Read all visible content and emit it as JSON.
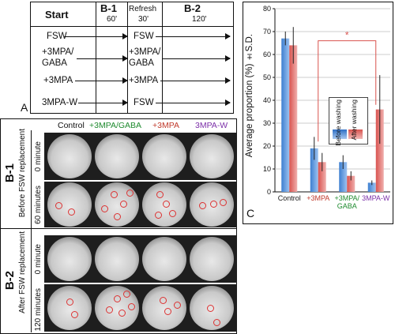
{
  "panel_a": {
    "letter": "A",
    "headers": {
      "start": "Start",
      "b1": "B-1",
      "b1_time": "60'",
      "refresh": "Refresh",
      "refresh_time": "30'",
      "b2": "B-2",
      "b2_time": "120'"
    },
    "rows": [
      {
        "start": "FSW",
        "refresh": "FSW"
      },
      {
        "start": "+3MPA/\nGABA",
        "refresh": "+3MPA/\nGABA"
      },
      {
        "start": "+3MPA",
        "refresh": "+3MPA"
      },
      {
        "start": "3MPA-W",
        "refresh": "FSW"
      }
    ]
  },
  "panel_b": {
    "columns": [
      {
        "label": "Control",
        "color": "#1a1a1a"
      },
      {
        "label": "+3MPA/GABA",
        "color": "#1e8a2e"
      },
      {
        "label": "+3MPA",
        "color": "#c0392b"
      },
      {
        "label": "3MPA-W",
        "color": "#7b2fa8"
      }
    ],
    "b1": {
      "label": "B-1",
      "sublabel": "Before FSW replacement",
      "row1": "0 minute",
      "row2": "60 minutes"
    },
    "b2": {
      "label": "B-2",
      "sublabel": "After FSW replacement",
      "row1": "0 minute",
      "row2": "120 minutes"
    }
  },
  "panel_c": {
    "letter": "C",
    "legend": {
      "before": "Before washing",
      "after": "After washing"
    },
    "significance": "*"
  },
  "chart_data": {
    "type": "bar",
    "categories": [
      "Control",
      "+3MPA",
      "+3MPA/\nGABA",
      "3MPA-W"
    ],
    "category_colors": [
      "#1a1a1a",
      "#c0392b",
      "#1e8a2e",
      "#7b2fa8"
    ],
    "series": [
      {
        "name": "Before washing",
        "values": [
          67,
          19,
          13,
          4
        ],
        "errors": [
          3,
          5,
          3,
          1
        ],
        "color": "#3d7fd1"
      },
      {
        "name": "After washing",
        "values": [
          64,
          13,
          7,
          36
        ],
        "errors": [
          8,
          4,
          2,
          15
        ],
        "color": "#d9534f"
      }
    ],
    "ylabel": "Average proportion (%) ±S.D.",
    "ylim": [
      0,
      80
    ],
    "yticks": [
      0,
      10,
      20,
      30,
      40,
      50,
      60,
      70,
      80
    ],
    "grid": true,
    "significance_bracket": {
      "from_category": 1,
      "to_category": 3,
      "label": "*"
    }
  }
}
